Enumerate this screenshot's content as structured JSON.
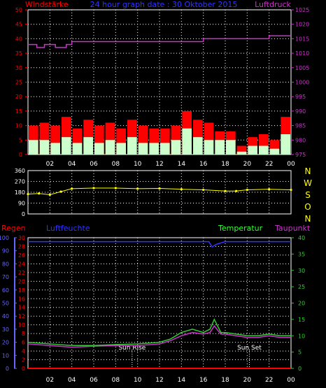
{
  "header": {
    "wind_label": "Windstärke",
    "title": "24 hour graph date : 30 Oktober 2015",
    "pressure_label": "Luftdruck"
  },
  "compass": [
    "N",
    "W",
    "S",
    "O",
    "N"
  ],
  "bottom_labels": {
    "rain": "Regen",
    "humidity": "Luftfeuchte",
    "temperature": "Temperatur",
    "dewpoint": "Taupunkt",
    "sunrise": "Sun Rise",
    "sunset": "Sun Set"
  },
  "colors": {
    "wind_gust": "#ff0000",
    "wind_avg": "#ccffcc",
    "pressure": "#cc33cc",
    "direction": "#ffff00",
    "temperature": "#33cc33",
    "dewpoint": "#cc33cc",
    "humidity": "#3333ff",
    "rain": "#ff0000",
    "grid": "#ffffff",
    "daylight_marker": "#ffffff"
  },
  "chart_data": [
    {
      "id": "wind_pressure",
      "type": "bar",
      "x_ticks": [
        "02",
        "04",
        "06",
        "08",
        "10",
        "12",
        "14",
        "16",
        "18",
        "20",
        "22",
        "00"
      ],
      "ylim_left": [
        0,
        50
      ],
      "yticks_left": [
        0,
        5,
        10,
        15,
        20,
        25,
        30,
        35,
        40,
        45,
        50
      ],
      "ylim_right": [
        975,
        1025
      ],
      "yticks_right": [
        975,
        980,
        985,
        990,
        995,
        1000,
        1005,
        1010,
        1015,
        1020,
        1025
      ],
      "grid": true,
      "series": [
        {
          "name": "Windstärke",
          "type": "bar",
          "axis": "left",
          "hours": [
            0.5,
            1.5,
            2.5,
            3.5,
            4.5,
            5.5,
            6.5,
            7.5,
            8.5,
            9.5,
            10.5,
            11.5,
            12.5,
            13.5,
            14.5,
            15.5,
            16.5,
            17.5,
            18.5,
            19.5,
            20.5,
            21.5,
            22.5,
            23.5
          ],
          "gust": [
            10,
            11,
            10,
            13,
            9,
            12,
            10,
            11,
            9,
            12,
            10,
            9,
            9,
            10,
            15,
            12,
            11,
            8,
            8,
            3,
            6,
            7,
            5,
            13
          ],
          "avg": [
            5,
            5,
            4,
            6,
            4,
            6,
            4,
            5,
            4,
            6,
            4,
            4,
            4,
            5,
            9,
            6,
            5,
            5,
            5,
            1,
            3,
            3,
            2,
            7
          ]
        },
        {
          "name": "Luftdruck",
          "type": "line",
          "axis": "right",
          "points": [
            [
              0,
              1013
            ],
            [
              0.8,
              1012
            ],
            [
              1.5,
              1013
            ],
            [
              2.5,
              1012
            ],
            [
              3.5,
              1013
            ],
            [
              4,
              1014
            ],
            [
              14,
              1014
            ],
            [
              16,
              1015
            ],
            [
              20,
              1015
            ],
            [
              22,
              1016
            ],
            [
              24,
              1016
            ]
          ]
        }
      ]
    },
    {
      "id": "wind_direction",
      "type": "scatter",
      "x_ticks": [
        "02",
        "04",
        "06",
        "08",
        "10",
        "12",
        "14",
        "16",
        "18",
        "20",
        "22",
        "00"
      ],
      "ylim": [
        0,
        360
      ],
      "yticks": [
        0,
        90,
        180,
        270,
        360
      ],
      "grid": true,
      "series": [
        {
          "name": "direction",
          "points": [
            [
              0,
              165
            ],
            [
              1,
              170
            ],
            [
              2,
              160
            ],
            [
              3,
              185
            ],
            [
              4,
              210
            ],
            [
              6,
              215
            ],
            [
              8,
              215
            ],
            [
              10,
              210
            ],
            [
              12,
              212
            ],
            [
              14,
              205
            ],
            [
              16,
              200
            ],
            [
              18,
              190
            ],
            [
              19,
              190
            ],
            [
              20,
              200
            ],
            [
              22,
              205
            ],
            [
              24,
              200
            ]
          ]
        }
      ]
    },
    {
      "id": "temp_humidity",
      "type": "line",
      "x_ticks": [
        "02",
        "04",
        "06",
        "08",
        "10",
        "12",
        "14",
        "16",
        "18",
        "20",
        "22",
        "00"
      ],
      "ylim_humidity": [
        0,
        100
      ],
      "yticks_humidity": [
        0,
        10,
        20,
        30,
        40,
        50,
        60,
        70,
        80,
        90,
        100
      ],
      "ylim_rain": [
        0,
        30
      ],
      "yticks_rain": [
        0,
        2,
        4,
        6,
        8,
        10,
        12,
        14,
        16,
        18,
        20,
        22,
        24,
        26,
        28,
        30
      ],
      "ylim_temperature": [
        0,
        40
      ],
      "yticks_temperature": [
        0,
        5,
        10,
        15,
        20,
        25,
        30,
        35,
        40
      ],
      "grid": true,
      "markers": [
        {
          "label": "Sun Rise",
          "hour": 9.5
        },
        {
          "label": "Sun Set",
          "hour": 20.2
        }
      ],
      "series": [
        {
          "name": "Luftfeuchte",
          "axis": "humidity",
          "points": [
            [
              0,
              97
            ],
            [
              14,
              97
            ],
            [
              16.5,
              97
            ],
            [
              16.8,
              93
            ],
            [
              17.2,
              95
            ],
            [
              18,
              97
            ],
            [
              24,
              97
            ]
          ]
        },
        {
          "name": "Temperatur",
          "axis": "temperature",
          "points": [
            [
              0,
              8
            ],
            [
              2,
              7.5
            ],
            [
              4,
              7
            ],
            [
              6,
              7
            ],
            [
              8,
              7.3
            ],
            [
              10,
              7.5
            ],
            [
              12,
              8
            ],
            [
              13,
              9
            ],
            [
              14,
              11
            ],
            [
              15,
              12
            ],
            [
              16,
              11
            ],
            [
              16.6,
              12
            ],
            [
              17,
              15
            ],
            [
              17.6,
              11
            ],
            [
              18,
              11
            ],
            [
              19,
              10.5
            ],
            [
              20,
              10
            ],
            [
              21,
              10
            ],
            [
              22,
              10.5
            ],
            [
              23,
              10
            ],
            [
              24,
              10
            ]
          ]
        },
        {
          "name": "Taupunkt",
          "axis": "temperature",
          "points": [
            [
              0,
              7.5
            ],
            [
              2,
              7
            ],
            [
              4,
              6.5
            ],
            [
              6,
              6.8
            ],
            [
              8,
              7
            ],
            [
              10,
              7
            ],
            [
              12,
              7.5
            ],
            [
              13,
              8.5
            ],
            [
              14,
              10
            ],
            [
              15,
              11
            ],
            [
              16,
              10.5
            ],
            [
              16.6,
              11
            ],
            [
              17,
              13
            ],
            [
              17.6,
              10.5
            ],
            [
              18,
              10.5
            ],
            [
              19,
              10
            ],
            [
              20,
              9.5
            ],
            [
              21,
              9.5
            ],
            [
              22,
              10
            ],
            [
              23,
              9.5
            ],
            [
              24,
              9.5
            ]
          ]
        },
        {
          "name": "Regen",
          "axis": "rain",
          "points": [
            [
              0,
              0
            ],
            [
              24,
              0
            ]
          ]
        }
      ]
    }
  ]
}
